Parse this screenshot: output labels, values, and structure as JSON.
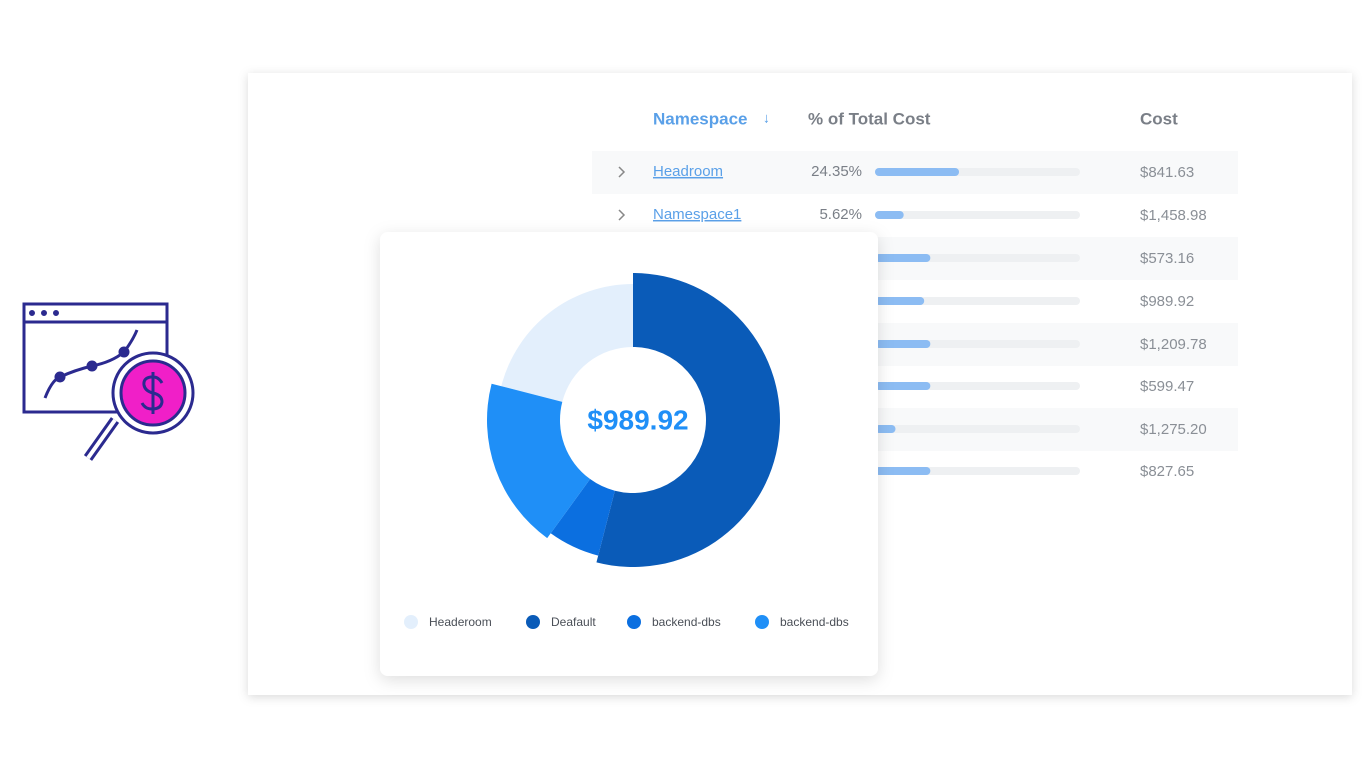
{
  "table": {
    "headers": {
      "namespace": "Namespace",
      "sort_icon": "↓",
      "percent": "% of Total Cost",
      "cost": "Cost"
    },
    "rows": [
      {
        "name": "Headroom",
        "percent": "24.35%",
        "bar_fill": 41,
        "cost": "$841.63"
      },
      {
        "name": "Namespace1",
        "percent": "5.62%",
        "bar_fill": 14,
        "cost": "$1,458.98"
      },
      {
        "bar_fill": 27,
        "cost": "$573.16"
      },
      {
        "bar_fill": 24,
        "cost": "$989.92"
      },
      {
        "bar_fill": 27,
        "cost": "$1,209.78"
      },
      {
        "bar_fill": 27,
        "cost": "$599.47"
      },
      {
        "bar_fill": 10,
        "cost": "$1,275.20"
      },
      {
        "bar_fill": 27,
        "cost": "$827.65"
      }
    ]
  },
  "chart_data": {
    "type": "donut",
    "center_label": "$989.92",
    "categories": [
      "Headeroom",
      "Deafault",
      "backend-dbs",
      "backend-dbs"
    ],
    "values": [
      21,
      54,
      6,
      19
    ],
    "colors": [
      "#e3effc",
      "#0a5bb8",
      "#0b6fe0",
      "#1f8ff7"
    ]
  }
}
